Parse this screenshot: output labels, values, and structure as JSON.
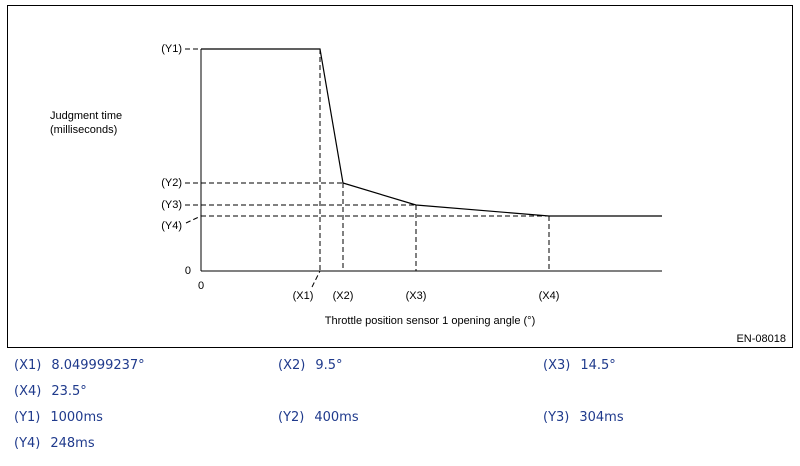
{
  "diagram": {
    "y_axis_label": [
      "Judgment time",
      "(milliseconds)"
    ],
    "x_axis_label": "Throttle position sensor 1 opening angle (°)",
    "y_origin": "0",
    "x_origin": "0",
    "y_markers": [
      "(Y1)",
      "(Y2)",
      "(Y3)",
      "(Y4)"
    ],
    "x_markers": [
      "(X1)",
      "(X2)",
      "(X3)",
      "(X4)"
    ],
    "figure_id": "EN-08018"
  },
  "legend": [
    {
      "key": "(X1)",
      "value": "8.049999237°"
    },
    {
      "key": "(X2)",
      "value": "9.5°"
    },
    {
      "key": "(X3)",
      "value": "14.5°"
    },
    {
      "key": "(X4)",
      "value": "23.5°"
    },
    {
      "key": "(Y1)",
      "value": "1000ms"
    },
    {
      "key": "(Y2)",
      "value": "400ms"
    },
    {
      "key": "(Y3)",
      "value": "304ms"
    },
    {
      "key": "(Y4)",
      "value": "248ms"
    }
  ]
}
